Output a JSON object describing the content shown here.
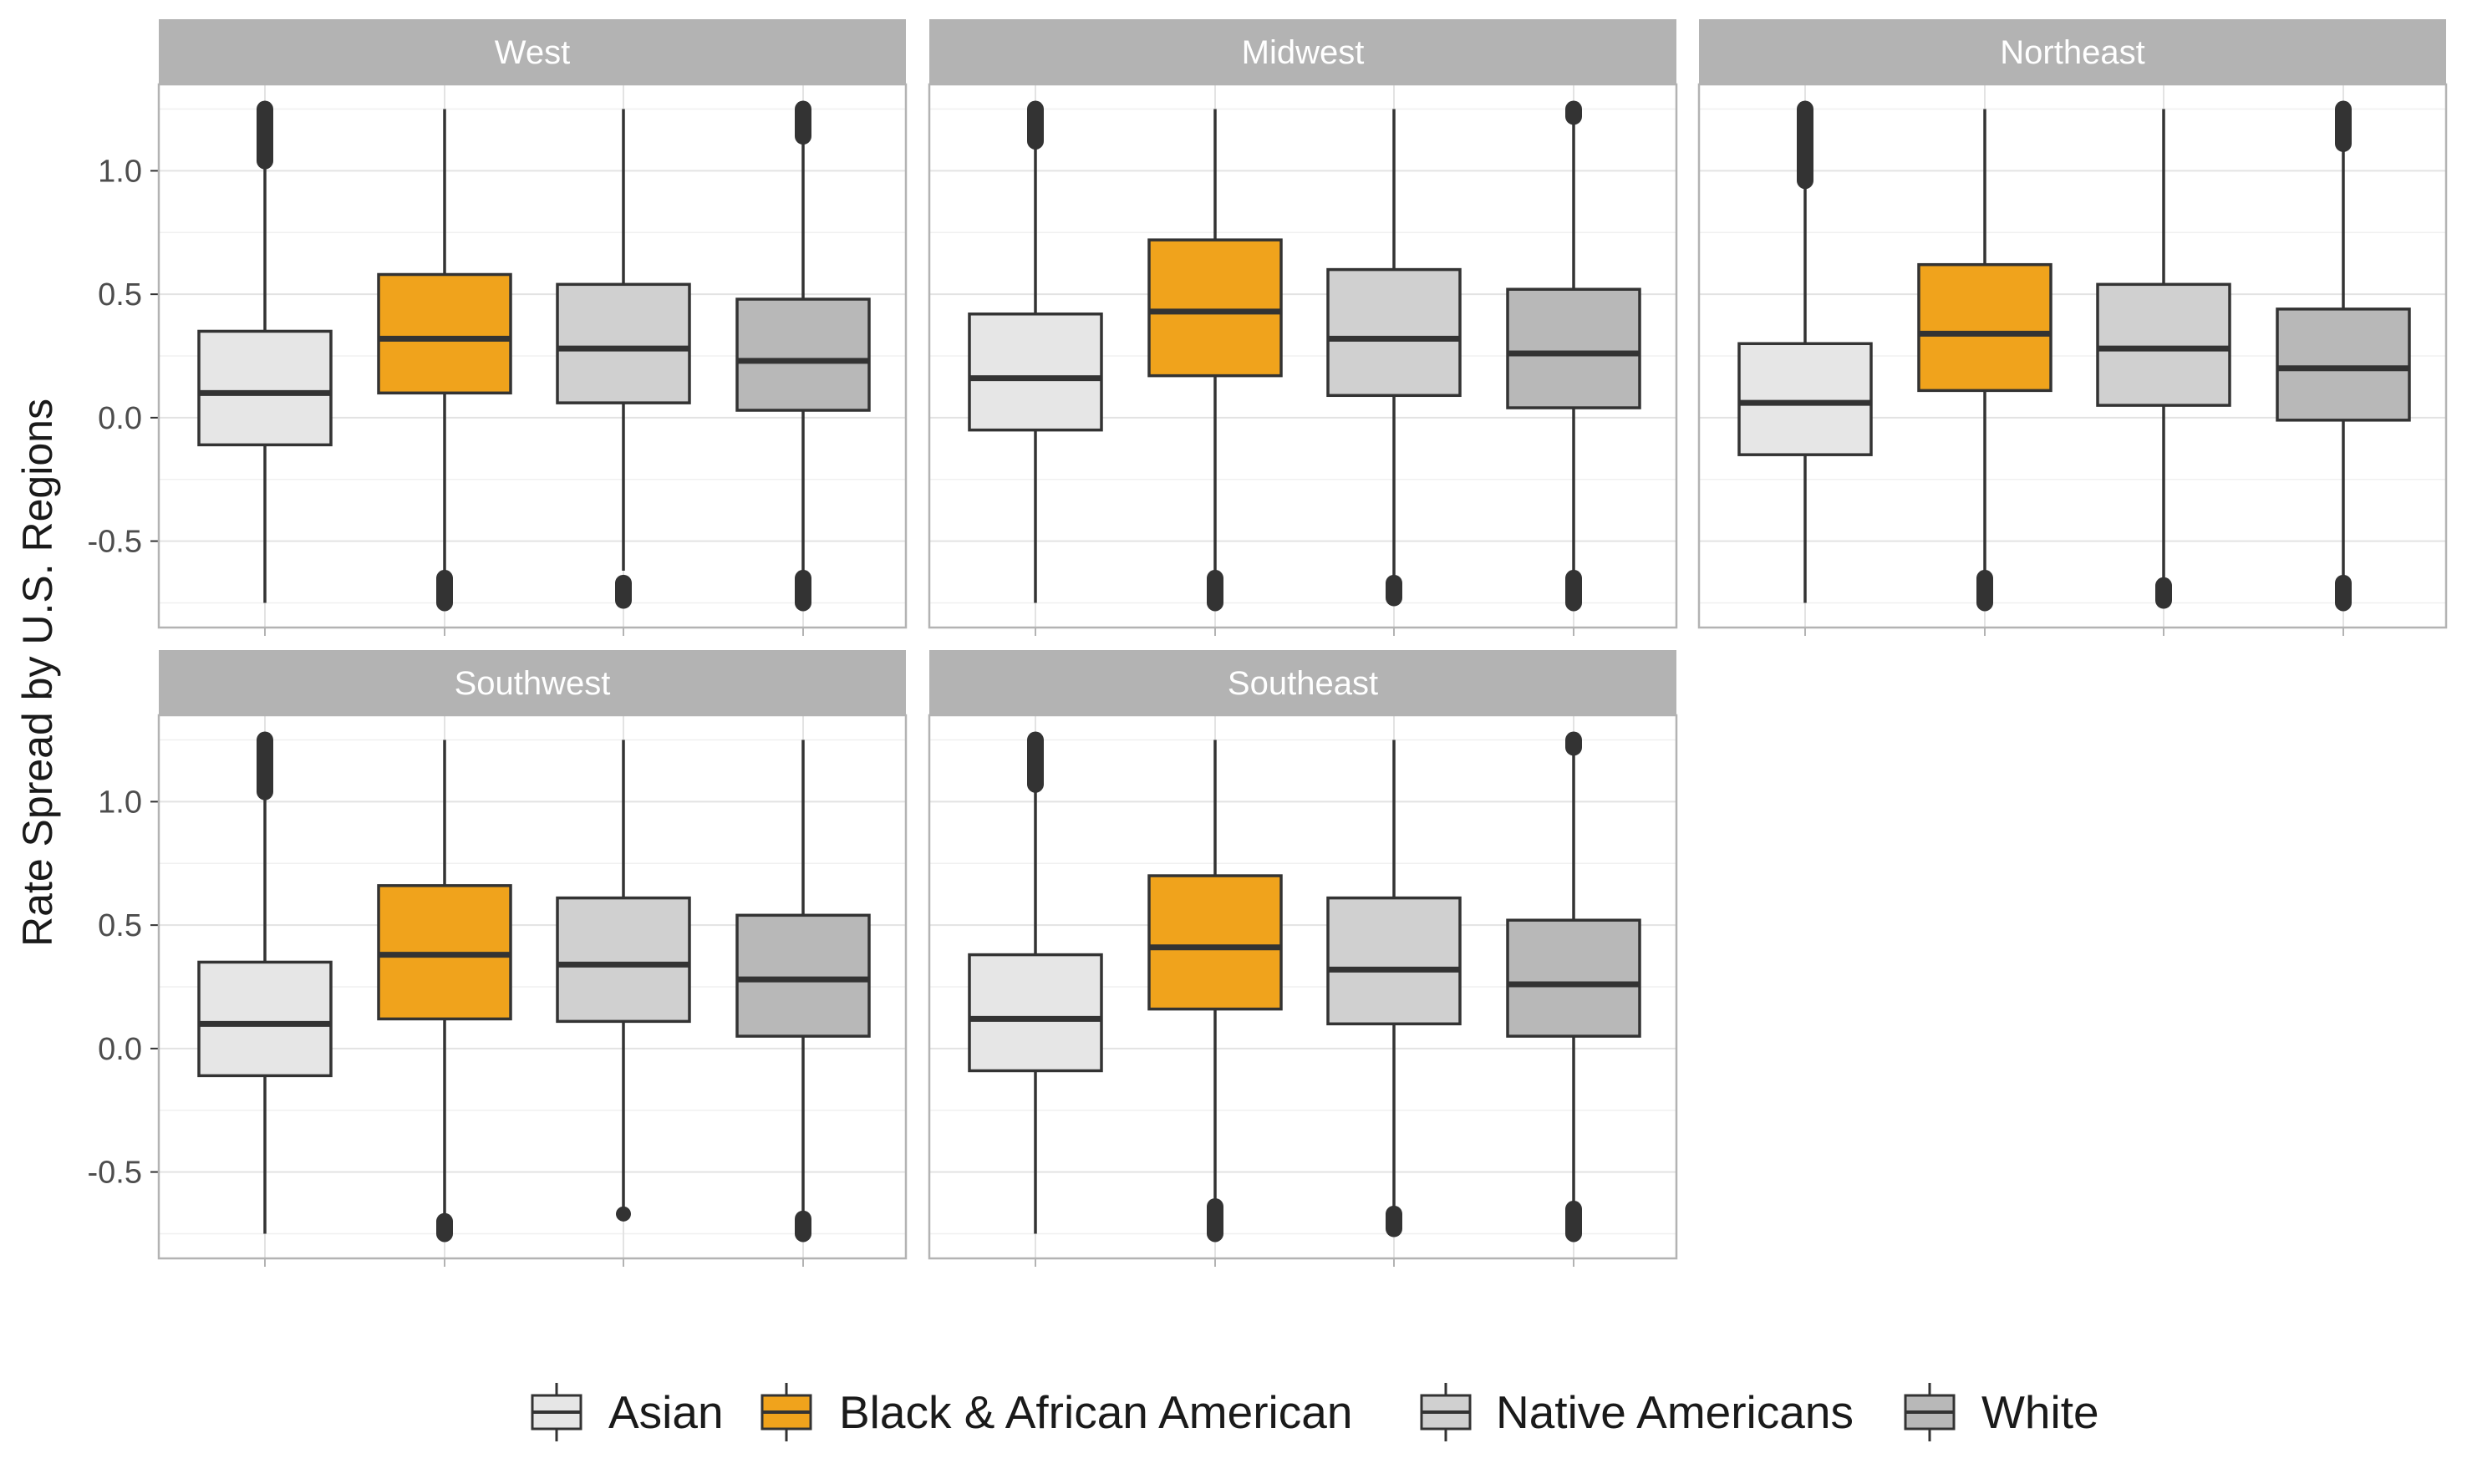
{
  "chart_data": {
    "type": "boxplot",
    "ylabel": "Rate Spread by U.S. Regions",
    "xlabel": "",
    "ylim": [
      -0.85,
      1.35
    ],
    "yticks": [
      -0.5,
      0.0,
      0.5,
      1.0
    ],
    "ytick_labels": [
      "-0.5",
      "0.0",
      "0.5",
      "1.0"
    ],
    "grid": true,
    "legend_position": "bottom",
    "groups": [
      "Asian",
      "Black & African American",
      "Native Americans",
      "White"
    ],
    "colors": {
      "Asian": "#e6e6e6",
      "Black & African American": "#f0a31c",
      "Native Americans": "#d0d0d0",
      "White": "#b8b8b8"
    },
    "facets": [
      {
        "region": "West",
        "boxes": [
          {
            "group": "Asian",
            "min": -0.75,
            "q1": -0.11,
            "median": 0.1,
            "q3": 0.35,
            "max": 1.04,
            "outliers_low": [],
            "outliers_high": [
              1.04,
              1.25
            ]
          },
          {
            "group": "Black & African American",
            "min": -0.65,
            "q1": 0.1,
            "median": 0.32,
            "q3": 0.58,
            "max": 1.25,
            "outliers_low": [
              -0.65,
              -0.75
            ],
            "outliers_high": []
          },
          {
            "group": "Native Americans",
            "min": -0.62,
            "q1": 0.06,
            "median": 0.28,
            "q3": 0.54,
            "max": 1.25,
            "outliers_low": [
              -0.67,
              -0.74
            ],
            "outliers_high": []
          },
          {
            "group": "White",
            "min": -0.63,
            "q1": 0.03,
            "median": 0.23,
            "q3": 0.48,
            "max": 1.14,
            "outliers_low": [
              -0.65,
              -0.75
            ],
            "outliers_high": [
              1.14,
              1.25
            ]
          }
        ]
      },
      {
        "region": "Midwest",
        "boxes": [
          {
            "group": "Asian",
            "min": -0.75,
            "q1": -0.05,
            "median": 0.16,
            "q3": 0.42,
            "max": 1.12,
            "outliers_low": [],
            "outliers_high": [
              1.12,
              1.25
            ]
          },
          {
            "group": "Black & African American",
            "min": -0.65,
            "q1": 0.17,
            "median": 0.43,
            "q3": 0.72,
            "max": 1.25,
            "outliers_low": [
              -0.65,
              -0.75
            ],
            "outliers_high": []
          },
          {
            "group": "Native Americans",
            "min": -0.66,
            "q1": 0.09,
            "median": 0.32,
            "q3": 0.6,
            "max": 1.25,
            "outliers_low": [
              -0.67,
              -0.73
            ],
            "outliers_high": []
          },
          {
            "group": "White",
            "min": -0.65,
            "q1": 0.04,
            "median": 0.26,
            "q3": 0.52,
            "max": 1.22,
            "outliers_low": [
              -0.65,
              -0.75
            ],
            "outliers_high": [
              1.22,
              1.25
            ]
          }
        ]
      },
      {
        "region": "Northeast",
        "boxes": [
          {
            "group": "Asian",
            "min": -0.75,
            "q1": -0.15,
            "median": 0.06,
            "q3": 0.3,
            "max": 0.96,
            "outliers_low": [],
            "outliers_high": [
              0.96,
              1.25
            ]
          },
          {
            "group": "Black & African American",
            "min": -0.65,
            "q1": 0.11,
            "median": 0.34,
            "q3": 0.62,
            "max": 1.25,
            "outliers_low": [
              -0.65,
              -0.75
            ],
            "outliers_high": []
          },
          {
            "group": "Native Americans",
            "min": -0.67,
            "q1": 0.05,
            "median": 0.28,
            "q3": 0.54,
            "max": 1.25,
            "outliers_low": [
              -0.68,
              -0.74
            ],
            "outliers_high": []
          },
          {
            "group": "White",
            "min": -0.66,
            "q1": -0.01,
            "median": 0.2,
            "q3": 0.44,
            "max": 1.11,
            "outliers_low": [
              -0.67,
              -0.75
            ],
            "outliers_high": [
              1.11,
              1.25
            ]
          }
        ]
      },
      {
        "region": "Southwest",
        "boxes": [
          {
            "group": "Asian",
            "min": -0.75,
            "q1": -0.11,
            "median": 0.1,
            "q3": 0.35,
            "max": 1.04,
            "outliers_low": [],
            "outliers_high": [
              1.04,
              1.25
            ]
          },
          {
            "group": "Black & African American",
            "min": -0.69,
            "q1": 0.12,
            "median": 0.38,
            "q3": 0.66,
            "max": 1.25,
            "outliers_low": [
              -0.7,
              -0.75
            ],
            "outliers_high": []
          },
          {
            "group": "Native Americans",
            "min": -0.65,
            "q1": 0.11,
            "median": 0.34,
            "q3": 0.61,
            "max": 1.25,
            "outliers_low": [
              -0.67
            ],
            "outliers_high": []
          },
          {
            "group": "White",
            "min": -0.68,
            "q1": 0.05,
            "median": 0.28,
            "q3": 0.54,
            "max": 1.25,
            "outliers_low": [
              -0.69,
              -0.75
            ],
            "outliers_high": []
          }
        ]
      },
      {
        "region": "Southeast",
        "boxes": [
          {
            "group": "Asian",
            "min": -0.75,
            "q1": -0.09,
            "median": 0.12,
            "q3": 0.38,
            "max": 1.07,
            "outliers_low": [],
            "outliers_high": [
              1.07,
              1.25
            ]
          },
          {
            "group": "Black & African American",
            "min": -0.63,
            "q1": 0.16,
            "median": 0.41,
            "q3": 0.7,
            "max": 1.25,
            "outliers_low": [
              -0.64,
              -0.75
            ],
            "outliers_high": []
          },
          {
            "group": "Native Americans",
            "min": -0.66,
            "q1": 0.1,
            "median": 0.32,
            "q3": 0.61,
            "max": 1.25,
            "outliers_low": [
              -0.67,
              -0.73
            ],
            "outliers_high": []
          },
          {
            "group": "White",
            "min": -0.64,
            "q1": 0.05,
            "median": 0.26,
            "q3": 0.52,
            "max": 1.22,
            "outliers_low": [
              -0.65,
              -0.75
            ],
            "outliers_high": [
              1.22,
              1.25
            ]
          }
        ]
      }
    ]
  }
}
